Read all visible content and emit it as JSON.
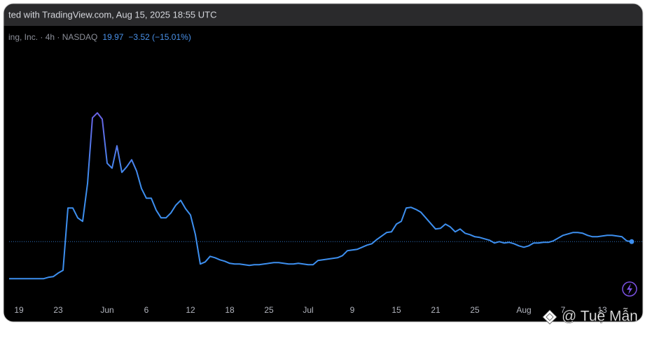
{
  "header": "ted with TradingView.com, Aug 15, 2025 18:55 UTC",
  "watermark": "@ Tuệ Mẫn",
  "chart_data": {
    "type": "line",
    "symbol_label": "ing, Inc. · 4h · NASDAQ",
    "price_label": "19.97",
    "change_label": "−3.52 (−15.01%)",
    "color": "#3d8fef",
    "peak_color": "#7b52e3",
    "last_price_line": true,
    "ylim": [
      12,
      42
    ],
    "categories": [
      null,
      null,
      "19",
      null,
      null,
      null,
      null,
      null,
      null,
      null,
      "23",
      null,
      null,
      null,
      null,
      null,
      null,
      null,
      null,
      null,
      "Jun",
      null,
      null,
      null,
      null,
      null,
      null,
      null,
      "6",
      null,
      null,
      null,
      null,
      null,
      null,
      null,
      null,
      "12",
      null,
      null,
      null,
      null,
      null,
      null,
      null,
      "18",
      null,
      null,
      null,
      null,
      null,
      null,
      null,
      "25",
      null,
      null,
      null,
      null,
      null,
      null,
      null,
      "Jul",
      null,
      null,
      null,
      null,
      null,
      null,
      null,
      null,
      "9",
      null,
      null,
      null,
      null,
      null,
      null,
      null,
      null,
      "15",
      null,
      null,
      null,
      null,
      null,
      null,
      null,
      "21",
      null,
      null,
      null,
      null,
      null,
      null,
      null,
      "25",
      null,
      null,
      null,
      null,
      null,
      null,
      null,
      null,
      null,
      "Aug",
      null,
      null,
      null,
      null,
      null,
      null,
      null,
      "7",
      null,
      null,
      null,
      null,
      null,
      null,
      null,
      "13",
      null,
      null,
      null,
      null,
      null,
      null
    ],
    "values": [
      14.67,
      14.67,
      14.67,
      14.67,
      14.67,
      14.67,
      14.67,
      14.67,
      14.87,
      14.97,
      15.47,
      15.87,
      24.77,
      24.77,
      23.37,
      22.87,
      28.27,
      37.67,
      38.37,
      37.47,
      31.17,
      30.47,
      33.67,
      29.87,
      30.67,
      31.67,
      30.07,
      27.57,
      26.17,
      26.17,
      24.47,
      23.37,
      23.37,
      24.07,
      25.17,
      25.87,
      24.67,
      23.77,
      20.97,
      16.77,
      17.07,
      17.87,
      17.67,
      17.37,
      17.17,
      16.87,
      16.77,
      16.77,
      16.67,
      16.57,
      16.67,
      16.67,
      16.77,
      16.87,
      16.97,
      16.97,
      16.87,
      16.77,
      16.77,
      16.87,
      16.77,
      16.67,
      16.67,
      17.27,
      17.37,
      17.47,
      17.57,
      17.67,
      17.97,
      18.67,
      18.77,
      18.87,
      19.17,
      19.47,
      19.67,
      20.27,
      20.77,
      21.27,
      21.37,
      22.47,
      22.87,
      24.77,
      24.87,
      24.57,
      24.17,
      23.37,
      22.57,
      21.77,
      21.87,
      22.47,
      22.07,
      21.37,
      21.77,
      21.17,
      20.97,
      20.67,
      20.57,
      20.37,
      20.17,
      19.77,
      19.97,
      19.77,
      19.87,
      19.67,
      19.37,
      19.17,
      19.37,
      19.77,
      19.77,
      19.87,
      19.87,
      20.07,
      20.47,
      20.87,
      21.07,
      21.27,
      21.27,
      21.17,
      20.87,
      20.67,
      20.67,
      20.77,
      20.87,
      20.87,
      20.77,
      20.67,
      20.07,
      19.97
    ]
  }
}
